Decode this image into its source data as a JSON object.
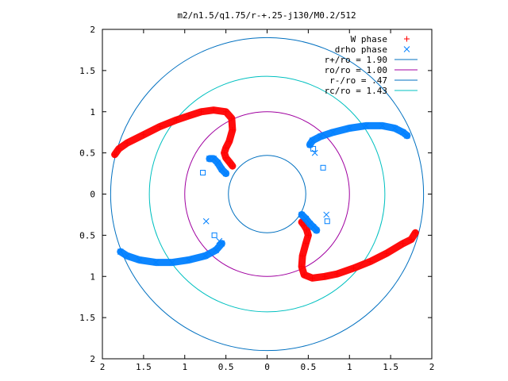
{
  "chart_data": {
    "type": "scatter",
    "title": "m2/n1.5/q1.75/r-+.25-j130/M0.2/512",
    "xlim": [
      -2,
      2
    ],
    "ylim": [
      -2,
      2
    ],
    "x_ticks": [
      {
        "value": -2,
        "label": "2"
      },
      {
        "value": -1.5,
        "label": "1.5"
      },
      {
        "value": -1,
        "label": "1"
      },
      {
        "value": -0.5,
        "label": "0.5"
      },
      {
        "value": 0,
        "label": "0"
      },
      {
        "value": 0.5,
        "label": "0.5"
      },
      {
        "value": 1,
        "label": "1"
      },
      {
        "value": 1.5,
        "label": "1.5"
      },
      {
        "value": 2,
        "label": "2"
      }
    ],
    "y_ticks": [
      {
        "value": 2,
        "label": "2"
      },
      {
        "value": 1.5,
        "label": "1.5"
      },
      {
        "value": 1,
        "label": "1"
      },
      {
        "value": 0.5,
        "label": "0.5"
      },
      {
        "value": 0,
        "label": "0"
      },
      {
        "value": -0.5,
        "label": "0.5"
      },
      {
        "value": -1,
        "label": "1"
      },
      {
        "value": -1.5,
        "label": "1.5"
      },
      {
        "value": -2,
        "label": "2"
      }
    ],
    "grid": false,
    "legend_position": "top-right",
    "legend": [
      {
        "label": "W phase",
        "kind": "marker",
        "marker": "plus",
        "color": "#ff0000"
      },
      {
        "label": "drho phase",
        "kind": "marker",
        "marker": "cross",
        "color": "#0080ff"
      },
      {
        "label": "r+/ro = 1.90",
        "kind": "line",
        "color": "#0070c0"
      },
      {
        "label": "ro/ro = 1.00",
        "kind": "line",
        "color": "#a000a0"
      },
      {
        "label": "r-/ro = .47",
        "kind": "line",
        "color": "#0070c0"
      },
      {
        "label": "rc/ro = 1.43",
        "kind": "line",
        "color": "#00c0c0"
      }
    ],
    "circles": [
      {
        "name": "r+/ro = 1.90",
        "radius": 1.9,
        "color": "#0070c0"
      },
      {
        "name": "ro/ro = 1.00",
        "radius": 1.0,
        "color": "#a000a0"
      },
      {
        "name": "r-/ro = .47",
        "radius": 0.47,
        "color": "#0070c0"
      },
      {
        "name": "rc/ro = 1.43",
        "radius": 1.43,
        "color": "#00c0c0"
      }
    ],
    "series": [
      {
        "name": "W phase",
        "marker": "plus",
        "color": "#ff0000",
        "arms": [
          [
            [
              -1.85,
              0.48
            ],
            [
              -1.8,
              0.55
            ],
            [
              -1.7,
              0.62
            ],
            [
              -1.5,
              0.72
            ],
            [
              -1.3,
              0.82
            ],
            [
              -1.1,
              0.9
            ],
            [
              -0.95,
              0.95
            ],
            [
              -0.8,
              1.0
            ],
            [
              -0.65,
              1.02
            ],
            [
              -0.5,
              1.0
            ],
            [
              -0.43,
              0.92
            ],
            [
              -0.42,
              0.78
            ],
            [
              -0.46,
              0.64
            ],
            [
              -0.5,
              0.56
            ],
            [
              -0.52,
              0.5
            ],
            [
              -0.5,
              0.44
            ],
            [
              -0.45,
              0.38
            ],
            [
              -0.42,
              0.34
            ]
          ],
          [
            [
              1.8,
              -0.47
            ],
            [
              1.75,
              -0.55
            ],
            [
              1.65,
              -0.6
            ],
            [
              1.45,
              -0.72
            ],
            [
              1.25,
              -0.82
            ],
            [
              1.05,
              -0.9
            ],
            [
              0.85,
              -0.97
            ],
            [
              0.7,
              -1.0
            ],
            [
              0.55,
              -1.02
            ],
            [
              0.45,
              -0.98
            ],
            [
              0.42,
              -0.88
            ],
            [
              0.43,
              -0.75
            ],
            [
              0.47,
              -0.6
            ],
            [
              0.5,
              -0.5
            ],
            [
              0.48,
              -0.43
            ],
            [
              0.45,
              -0.38
            ],
            [
              0.42,
              -0.34
            ]
          ]
        ]
      },
      {
        "name": "drho phase",
        "marker": "cross",
        "color": "#0080ff",
        "arms": [
          [
            [
              0.52,
              0.6
            ],
            [
              0.55,
              0.65
            ],
            [
              0.65,
              0.7
            ],
            [
              0.8,
              0.75
            ],
            [
              1.0,
              0.8
            ],
            [
              1.2,
              0.83
            ],
            [
              1.4,
              0.83
            ],
            [
              1.55,
              0.8
            ],
            [
              1.65,
              0.75
            ],
            [
              1.7,
              0.71
            ]
          ],
          [
            [
              -1.78,
              -0.7
            ],
            [
              -1.7,
              -0.75
            ],
            [
              -1.55,
              -0.8
            ],
            [
              -1.35,
              -0.83
            ],
            [
              -1.15,
              -0.83
            ],
            [
              -0.95,
              -0.8
            ],
            [
              -0.75,
              -0.75
            ],
            [
              -0.62,
              -0.68
            ],
            [
              -0.55,
              -0.6
            ]
          ],
          [
            [
              -0.7,
              0.43
            ],
            [
              -0.65,
              0.43
            ],
            [
              -0.6,
              0.38
            ],
            [
              -0.55,
              0.3
            ],
            [
              -0.5,
              0.25
            ]
          ],
          [
            [
              0.42,
              -0.25
            ],
            [
              0.47,
              -0.3
            ],
            [
              0.52,
              -0.36
            ],
            [
              0.56,
              -0.4
            ],
            [
              0.6,
              -0.44
            ]
          ]
        ],
        "outliers": [
          [
            -0.78,
            0.26
          ],
          [
            -0.74,
            -0.33
          ],
          [
            -0.64,
            -0.5
          ],
          [
            -0.58,
            -0.57
          ],
          [
            0.56,
            0.55
          ],
          [
            0.58,
            0.5
          ],
          [
            0.68,
            0.32
          ],
          [
            0.72,
            -0.25
          ],
          [
            0.73,
            -0.33
          ]
        ]
      }
    ]
  }
}
